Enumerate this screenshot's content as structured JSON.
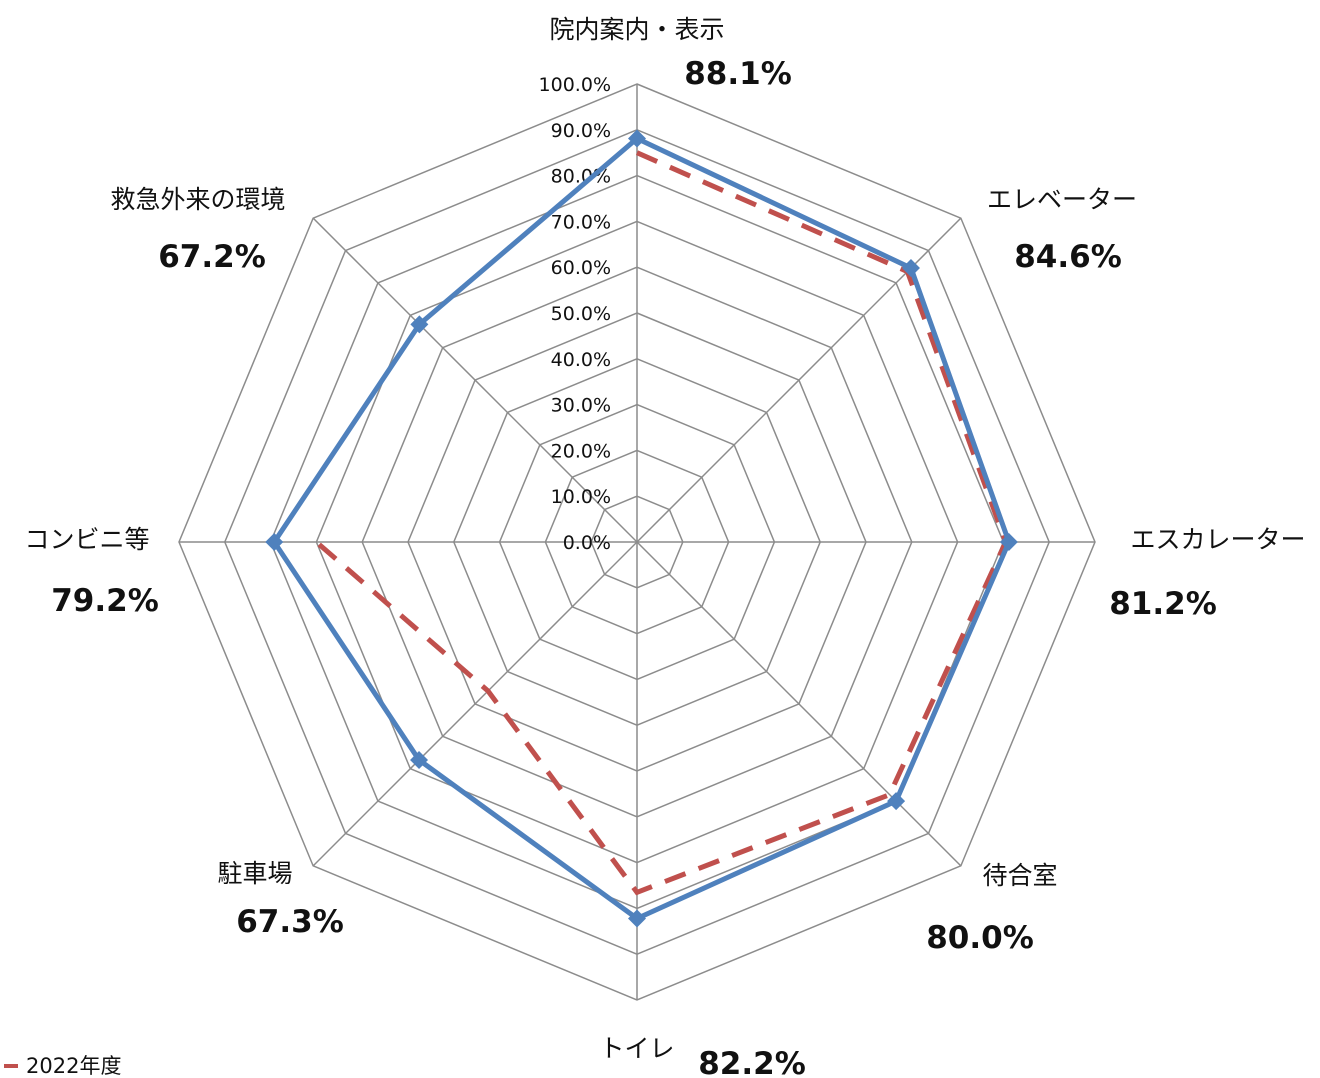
{
  "chart_data": {
    "type": "radar",
    "categories": [
      "院内案内・表示",
      "エレベーター",
      "エスカレーター",
      "待合室",
      "トイレ",
      "駐車場",
      "コンビニ等",
      "救急外来の環境"
    ],
    "value_labels": [
      "88.1%",
      "84.6%",
      "81.2%",
      "80.0%",
      "82.2%",
      "67.3%",
      "79.2%",
      "67.2%"
    ],
    "series": [
      {
        "values": [
          88.1,
          84.6,
          81.2,
          80.0,
          82.2,
          67.3,
          79.2,
          67.2
        ],
        "color": "#4F81BD",
        "style": "solid",
        "marker": "diamond"
      },
      {
        "name": "2022年度",
        "values": [
          85.0,
          83.5,
          80.5,
          78.0,
          76.5,
          46.0,
          70.0,
          null
        ],
        "color": "#C0504D",
        "style": "dashed"
      }
    ],
    "radial_ticks": [
      "0.0%",
      "10.0%",
      "20.0%",
      "30.0%",
      "40.0%",
      "50.0%",
      "60.0%",
      "70.0%",
      "80.0%",
      "90.0%",
      "100.0%"
    ],
    "range": [
      0,
      100
    ],
    "grid": true,
    "legend_position": "bottom-left"
  },
  "colors": {
    "grid": "#8c8c8c",
    "current": "#4F81BD",
    "previous": "#C0504D"
  }
}
